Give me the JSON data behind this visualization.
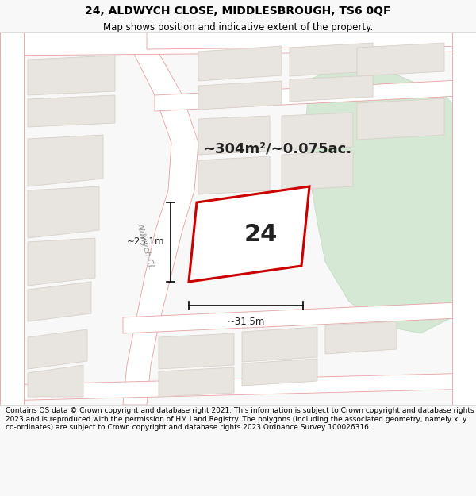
{
  "title_line1": "24, ALDWYCH CLOSE, MIDDLESBROUGH, TS6 0QF",
  "title_line2": "Map shows position and indicative extent of the property.",
  "area_text": "~304m²/~0.075ac.",
  "label_number": "24",
  "dim_width": "~31.5m",
  "dim_height": "~23.1m",
  "street_label": "Aldwych Cl.",
  "footer_text": "Contains OS data © Crown copyright and database right 2021. This information is subject to Crown copyright and database rights 2023 and is reproduced with the permission of HM Land Registry. The polygons (including the associated geometry, namely x, y co-ordinates) are subject to Crown copyright and database rights 2023 Ordnance Survey 100026316.",
  "bg_color": "#f8f8f8",
  "map_bg": "#f0ece8",
  "road_color": "#ffffff",
  "road_line_color": "#e8a0a0",
  "block_color": "#e8e4e0",
  "block_edge": "#d8d0c8",
  "green_area_color": "#d4e8d4",
  "green_edge": "#c0d8c0",
  "property_fill": "#ffffff",
  "property_edge": "#cc0000",
  "footer_bg": "#ffffff",
  "title_fontsize": 10,
  "subtitle_fontsize": 8.5,
  "area_fontsize": 13,
  "number_fontsize": 22,
  "dim_fontsize": 8.5,
  "street_fontsize": 7.5,
  "footer_fontsize": 6.5
}
